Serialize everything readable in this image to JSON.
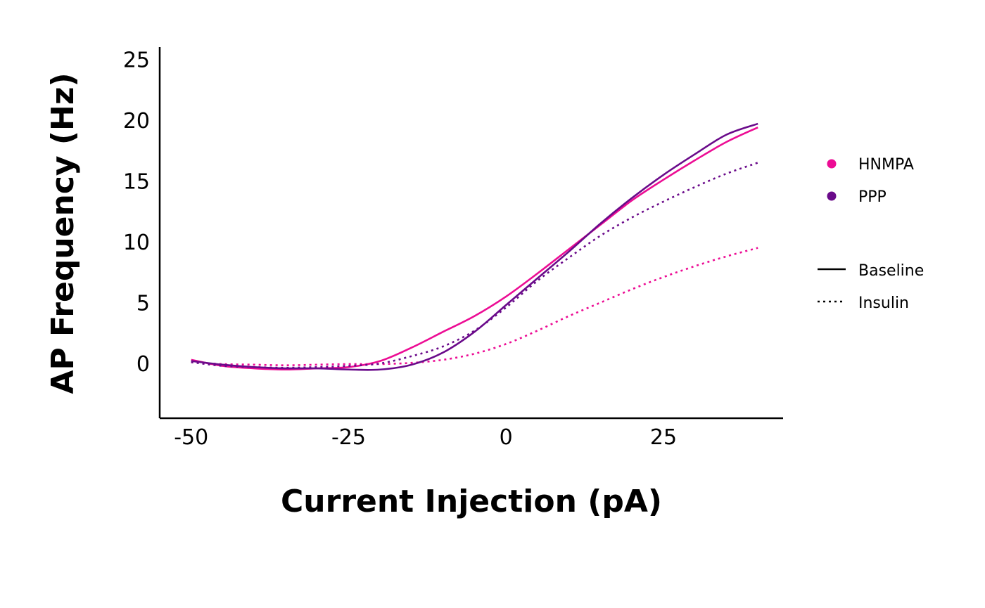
{
  "chart_data": {
    "type": "line",
    "title": "",
    "xlabel": "Current Injection (pA)",
    "ylabel": "AP Frequency (Hz)",
    "xlim": [
      -55,
      44
    ],
    "ylim": [
      -4.5,
      26
    ],
    "x_ticks": [
      -50,
      -25,
      0,
      25
    ],
    "y_ticks": [
      0,
      5,
      10,
      15,
      20,
      25
    ],
    "x_tick_labels": [
      "-50",
      "-25",
      "0",
      "25"
    ],
    "y_tick_labels": [
      "0",
      "5",
      "10",
      "15",
      "20",
      "25"
    ],
    "grid": false,
    "legend_position": "right",
    "legend": {
      "groups": [
        {
          "label": "HNMPA",
          "color": "#EC0C94",
          "marker": "dot"
        },
        {
          "label": "PPP",
          "color": "#6A0A8A",
          "marker": "dot"
        }
      ],
      "conditions": [
        {
          "label": "Baseline",
          "linestyle": "solid"
        },
        {
          "label": "Insulin",
          "linestyle": "dotted"
        }
      ]
    },
    "series": [
      {
        "group": "HNMPA",
        "condition": "Baseline",
        "color": "#EC0C94",
        "linestyle": "solid",
        "x": [
          -50,
          -45,
          -40,
          -35,
          -30,
          -25,
          -20,
          -15,
          -10,
          -5,
          0,
          5,
          10,
          15,
          20,
          25,
          30,
          35,
          40
        ],
        "y": [
          0.3,
          -0.2,
          -0.4,
          -0.5,
          -0.4,
          -0.3,
          0.2,
          1.3,
          2.6,
          3.9,
          5.5,
          7.4,
          9.4,
          11.4,
          13.4,
          15.1,
          16.7,
          18.2,
          19.4
        ]
      },
      {
        "group": "HNMPA",
        "condition": "Insulin",
        "color": "#EC0C94",
        "linestyle": "dotted",
        "x": [
          -50,
          -45,
          -40,
          -35,
          -30,
          -25,
          -20,
          -15,
          -10,
          -5,
          0,
          5,
          10,
          15,
          20,
          25,
          30,
          35,
          40
        ],
        "y": [
          0.1,
          -0.05,
          -0.1,
          -0.15,
          -0.1,
          -0.05,
          -0.05,
          0.05,
          0.3,
          0.8,
          1.6,
          2.7,
          3.9,
          5.0,
          6.1,
          7.1,
          8.0,
          8.8,
          9.5
        ]
      },
      {
        "group": "PPP",
        "condition": "Baseline",
        "color": "#6A0A8A",
        "linestyle": "solid",
        "x": [
          -50,
          -45,
          -40,
          -35,
          -30,
          -25,
          -20,
          -15,
          -10,
          -5,
          0,
          5,
          10,
          15,
          20,
          25,
          30,
          35,
          40
        ],
        "y": [
          0.2,
          -0.1,
          -0.3,
          -0.4,
          -0.4,
          -0.5,
          -0.5,
          -0.1,
          0.9,
          2.6,
          4.8,
          7.0,
          9.2,
          11.5,
          13.6,
          15.5,
          17.2,
          18.8,
          19.7
        ]
      },
      {
        "group": "PPP",
        "condition": "Insulin",
        "color": "#6A0A8A",
        "linestyle": "dotted",
        "x": [
          -50,
          -45,
          -40,
          -35,
          -30,
          -25,
          -20,
          -15,
          -10,
          -5,
          0,
          5,
          10,
          15,
          20,
          25,
          30,
          35,
          40
        ],
        "y": [
          0.1,
          -0.2,
          -0.3,
          -0.35,
          -0.3,
          -0.2,
          0.0,
          0.6,
          1.4,
          2.7,
          4.6,
          6.8,
          8.7,
          10.5,
          12.0,
          13.3,
          14.5,
          15.6,
          16.5
        ]
      }
    ]
  }
}
